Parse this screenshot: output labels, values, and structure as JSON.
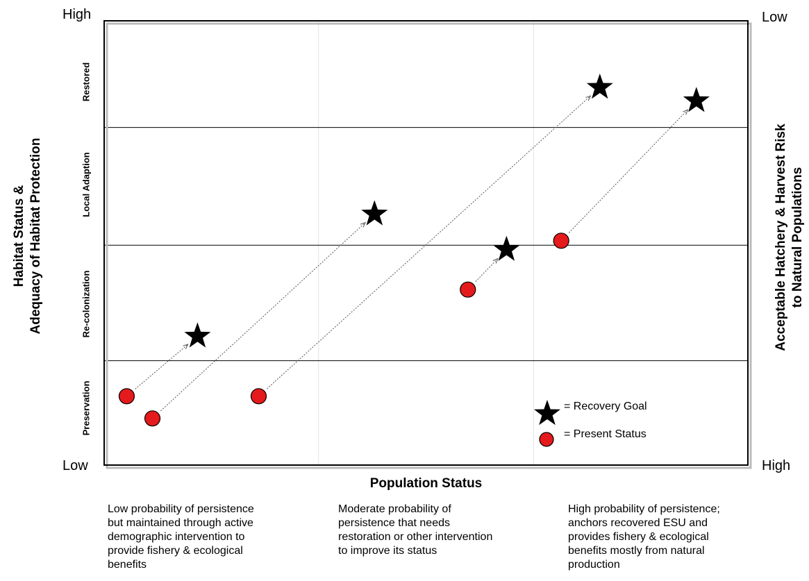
{
  "chart_data": {
    "type": "scatter",
    "title": "",
    "xlabel": "Population Status",
    "ylabel_lines": [
      "Habitat Status &",
      "Adequacy of Habitat Protection"
    ],
    "y2label_lines": [
      "Acceptable Hatchery & Harvest Risk",
      "to Natural Populations"
    ],
    "corners": {
      "top_left": "High",
      "bottom_left": "Low",
      "top_right": "Low",
      "bottom_right": "High"
    },
    "xlim": [
      0,
      100
    ],
    "ylim": [
      0,
      100
    ],
    "grid": "horizontal lines at band boundaries, faint vertical lines at x thirds",
    "bands": [
      {
        "label": "Preservation",
        "from": 0,
        "to": 23.5
      },
      {
        "label": "Re-colonization",
        "from": 23.5,
        "to": 49.5
      },
      {
        "label": "Local Adaption",
        "from": 49.5,
        "to": 76
      },
      {
        "label": "Restored",
        "from": 76,
        "to": 100
      }
    ],
    "vertical_gridlines": [
      33.3,
      66.7
    ],
    "series": [
      {
        "name": "Present Status",
        "marker": "circle",
        "color": "#e41a1c",
        "points": [
          [
            3.5,
            15.5
          ],
          [
            7.5,
            10.5
          ],
          [
            24,
            15.5
          ],
          [
            56.5,
            39.5
          ],
          [
            71,
            50.5
          ]
        ]
      },
      {
        "name": "Recovery Goal",
        "marker": "star",
        "color": "#000000",
        "points": [
          [
            14.5,
            29
          ],
          [
            42,
            56.5
          ],
          [
            77,
            85
          ],
          [
            92,
            82
          ],
          [
            62.5,
            48.5
          ]
        ]
      }
    ],
    "arrows": [
      {
        "from": [
          3.5,
          15.5
        ],
        "to": [
          14.5,
          29
        ]
      },
      {
        "from": [
          7.5,
          10.5
        ],
        "to": [
          42,
          56.5
        ]
      },
      {
        "from": [
          24,
          15.5
        ],
        "to": [
          77,
          85
        ]
      },
      {
        "from": [
          56.5,
          39.5
        ],
        "to": [
          62.5,
          48.5
        ]
      },
      {
        "from": [
          71,
          50.5
        ],
        "to": [
          92,
          82
        ]
      }
    ],
    "legend": {
      "placement": "bottom-right",
      "entries": [
        {
          "symbol": "star",
          "text": "=  Recovery Goal"
        },
        {
          "symbol": "circle",
          "text": "=    Present Status"
        }
      ]
    },
    "descriptions": [
      [
        "Low probability of persistence",
        "but maintained through active",
        "demographic intervention to",
        "provide fishery & ecological",
        "benefits"
      ],
      [
        "Moderate probability of",
        "persistence that needs",
        "restoration or other intervention",
        "to improve its status"
      ],
      [
        "High probability of persistence;",
        "anchors recovered ESU and",
        "provides fishery & ecological",
        "benefits mostly from natural",
        "production"
      ]
    ]
  }
}
